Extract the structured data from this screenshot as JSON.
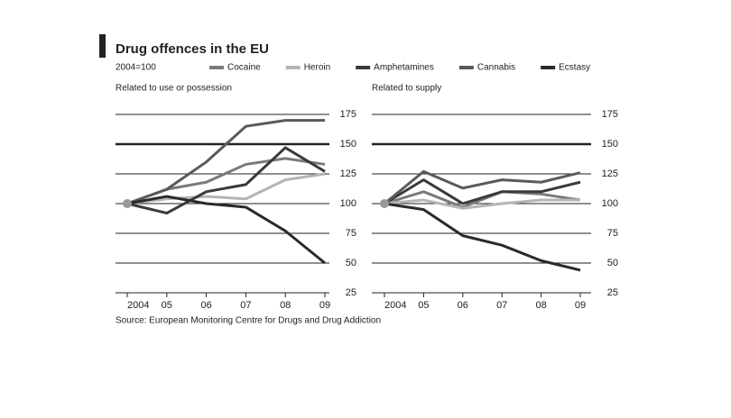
{
  "header": {
    "title": "Drug offences in the EU",
    "subtitle": "2004=100",
    "source": "Source: European Monitoring Centre for Drugs and Drug Addiction"
  },
  "chart_data": [
    {
      "type": "line",
      "title": "Related to use or possession",
      "categories": [
        "2004",
        "05",
        "06",
        "07",
        "08",
        "09"
      ],
      "ylim": [
        25,
        175
      ],
      "yticks": [
        25,
        50,
        75,
        100,
        125,
        150,
        175
      ],
      "grid": true,
      "series": [
        {
          "name": "Cocaine",
          "color": "#7a7a7a",
          "values": [
            100,
            112,
            118,
            133,
            138,
            133
          ]
        },
        {
          "name": "Heroin",
          "color": "#b5b5b5",
          "values": [
            100,
            104,
            106,
            104,
            120,
            125
          ]
        },
        {
          "name": "Amphetamines",
          "color": "#3a3a3a",
          "values": [
            100,
            92,
            110,
            116,
            147,
            127
          ]
        },
        {
          "name": "Cannabis",
          "color": "#5a5a5a",
          "values": [
            100,
            112,
            135,
            165,
            170,
            170
          ]
        },
        {
          "name": "Ecstasy",
          "color": "#2a2a2a",
          "values": [
            100,
            106,
            100,
            97,
            77,
            50
          ]
        }
      ]
    },
    {
      "type": "line",
      "title": "Related to supply",
      "categories": [
        "2004",
        "05",
        "06",
        "07",
        "08",
        "09"
      ],
      "ylim": [
        25,
        175
      ],
      "yticks": [
        25,
        50,
        75,
        100,
        125,
        150,
        175
      ],
      "grid": true,
      "series": [
        {
          "color": "#7a7a7a",
          "values": [
            100,
            110,
            97,
            110,
            108,
            103
          ]
        },
        {
          "color": "#b5b5b5",
          "values": [
            100,
            103,
            96,
            100,
            103,
            103
          ]
        },
        {
          "color": "#3a3a3a",
          "values": [
            100,
            120,
            100,
            110,
            110,
            118
          ]
        },
        {
          "color": "#5a5a5a",
          "values": [
            100,
            127,
            113,
            120,
            118,
            126
          ]
        },
        {
          "color": "#2a2a2a",
          "values": [
            100,
            95,
            73,
            65,
            52,
            44
          ]
        }
      ]
    }
  ]
}
